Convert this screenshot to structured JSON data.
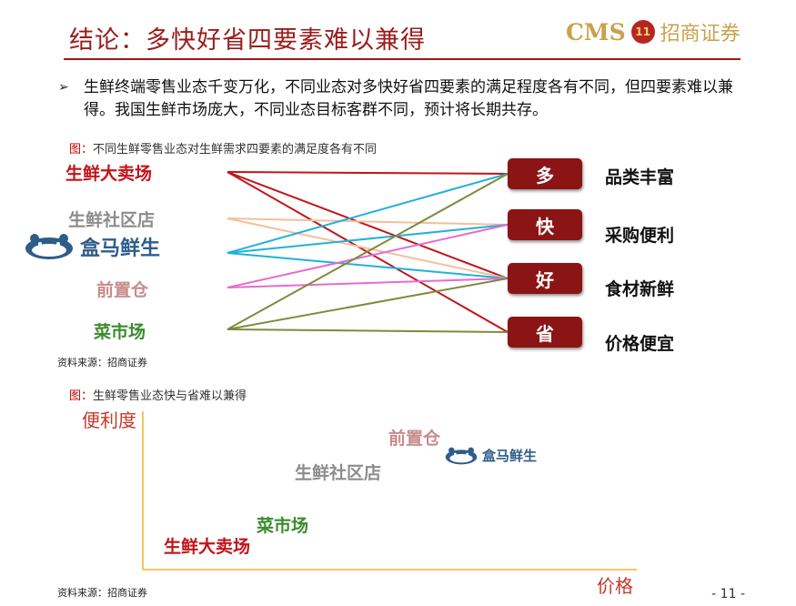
{
  "header": {
    "title": "结论：多快好省四要素难以兼得",
    "logo_latin": "CMS",
    "logo_seal": "11",
    "logo_cn": "招商证券"
  },
  "bullet": {
    "mark": "➢",
    "text": "生鲜终端零售业态千变万化，不同业态对多快好省四要素的满足程度各有不同，但四要素难以兼得。我国生鲜市场庞大，不同业态目标客群不同，预计将长期共存。"
  },
  "figure1": {
    "caption_prefix": "图：",
    "caption": "不同生鲜零售业态对生鲜需求四要素的满足度各有不同",
    "source": "资料来源：招商证券",
    "formats": [
      {
        "label": "生鲜大卖场",
        "color": "#c0151b"
      },
      {
        "label": "生鲜社区店",
        "color": "#8c8c8c"
      },
      {
        "label": "盒马鲜生",
        "color": "#2f5d8a"
      },
      {
        "label": "前置仓",
        "color": "#c98b8b"
      },
      {
        "label": "菜市场",
        "color": "#3d8b2e"
      }
    ],
    "factors": [
      {
        "char": "多",
        "meaning": "品类丰富"
      },
      {
        "char": "快",
        "meaning": "采购便利"
      },
      {
        "char": "好",
        "meaning": "食材新鲜"
      },
      {
        "char": "省",
        "meaning": "价格便宜"
      }
    ],
    "links": [
      {
        "from": 0,
        "to": 0,
        "color": "#c0151b"
      },
      {
        "from": 0,
        "to": 2,
        "color": "#c0151b"
      },
      {
        "from": 0,
        "to": 3,
        "color": "#c0151b"
      },
      {
        "from": 1,
        "to": 1,
        "color": "#f2c09a"
      },
      {
        "from": 1,
        "to": 2,
        "color": "#f2c09a"
      },
      {
        "from": 2,
        "to": 0,
        "color": "#1fb2d8"
      },
      {
        "from": 2,
        "to": 1,
        "color": "#1fb2d8"
      },
      {
        "from": 2,
        "to": 2,
        "color": "#1fb2d8"
      },
      {
        "from": 3,
        "to": 1,
        "color": "#e86ad0"
      },
      {
        "from": 3,
        "to": 2,
        "color": "#e86ad0"
      },
      {
        "from": 4,
        "to": 0,
        "color": "#808a3a"
      },
      {
        "from": 4,
        "to": 2,
        "color": "#808a3a"
      },
      {
        "from": 4,
        "to": 3,
        "color": "#808a3a"
      }
    ]
  },
  "figure2": {
    "caption_prefix": "图：",
    "caption": "生鲜零售业态快与省难以兼得",
    "source": "资料来源：招商证券",
    "y_axis_label": "便利度",
    "x_axis_label": "价格",
    "axis_color": "#f0b429",
    "points": [
      {
        "label": "前置仓",
        "color": "#c98b8b",
        "x_level": "higher",
        "y_level": "highest"
      },
      {
        "label": "盒马鲜生",
        "color": "#2f5d8a",
        "x_level": "highest",
        "y_level": "high"
      },
      {
        "label": "生鲜社区店",
        "color": "#8c8c8c",
        "x_level": "high",
        "y_level": "high"
      },
      {
        "label": "菜市场",
        "color": "#3d8b2e",
        "x_level": "low",
        "y_level": "low"
      },
      {
        "label": "生鲜大卖场",
        "color": "#c0151b",
        "x_level": "lowest",
        "y_level": "lowest"
      }
    ]
  },
  "footer": {
    "page": "- 11 -"
  }
}
